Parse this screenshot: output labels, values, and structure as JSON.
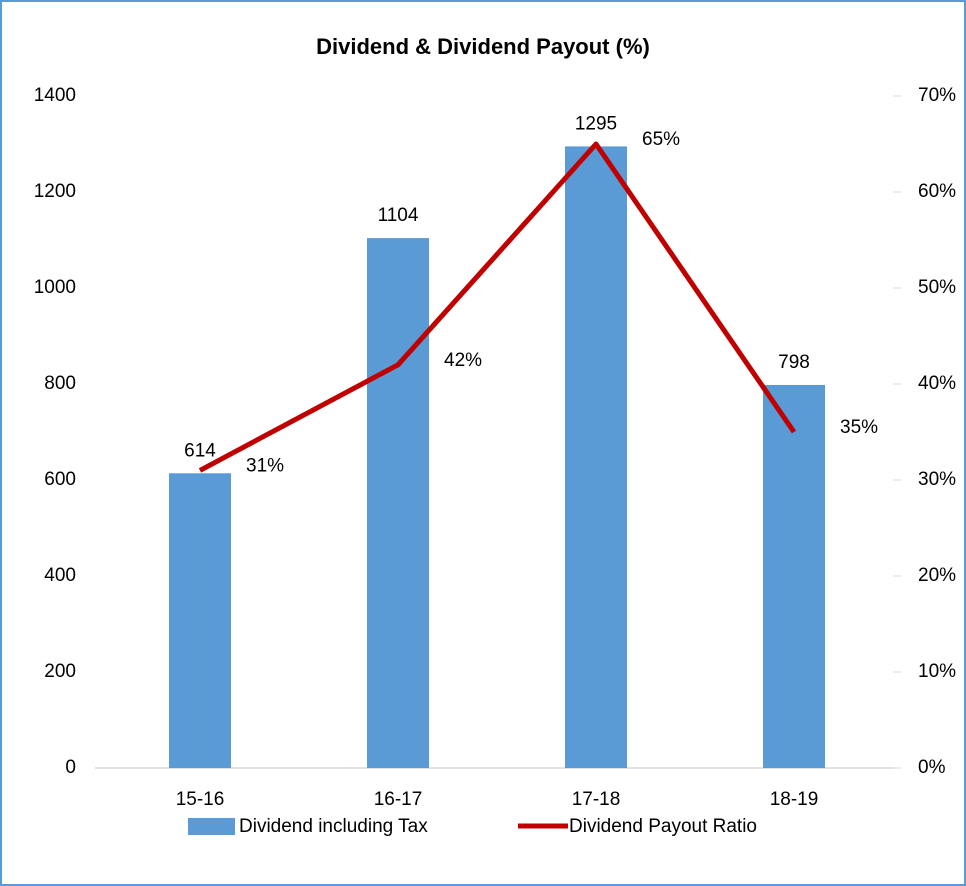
{
  "chart_data": {
    "type": "bar",
    "title": "Dividend & Dividend Payout (%)",
    "categories": [
      "15-16",
      "16-17",
      "17-18",
      "18-19"
    ],
    "series": [
      {
        "name": "Dividend including Tax",
        "type": "bar",
        "color": "#5b9bd5",
        "values": [
          614,
          1104,
          1295,
          798
        ]
      },
      {
        "name": "Dividend Payout Ratio",
        "type": "line",
        "axis": "y2",
        "color": "#c00000",
        "values": [
          31,
          42,
          65,
          35
        ],
        "value_labels": [
          "31%",
          "42%",
          "65%",
          "35%"
        ]
      }
    ],
    "ylim": [
      0,
      1400
    ],
    "yticks": [
      0,
      200,
      400,
      600,
      800,
      1000,
      1200,
      1400
    ],
    "y2lim": [
      0,
      70
    ],
    "y2ticks": [
      {
        "value": 0,
        "label": "0%"
      },
      {
        "value": 10,
        "label": "10%"
      },
      {
        "value": 20,
        "label": "20%"
      },
      {
        "value": 30,
        "label": "30%"
      },
      {
        "value": 40,
        "label": "40%"
      },
      {
        "value": 50,
        "label": "50%"
      },
      {
        "value": 60,
        "label": "60%"
      },
      {
        "value": 70,
        "label": "70%"
      }
    ],
    "grid": false,
    "legend": "bottom"
  }
}
